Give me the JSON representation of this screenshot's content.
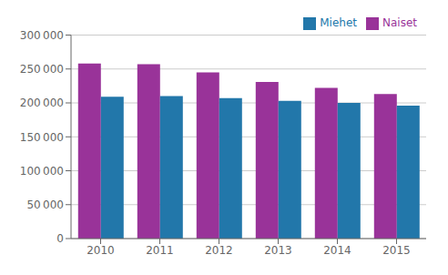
{
  "chart_data": {
    "type": "bar",
    "categories": [
      "2010",
      "2011",
      "2012",
      "2013",
      "2014",
      "2015"
    ],
    "series": [
      {
        "name": "Naiset",
        "color": "#993399",
        "values": [
          258000,
          257000,
          245000,
          231000,
          222000,
          213000
        ]
      },
      {
        "name": "Miehet",
        "color": "#2277AA",
        "values": [
          209000,
          210000,
          207000,
          203000,
          200000,
          196000
        ]
      }
    ],
    "ylim": [
      0,
      300000
    ],
    "yticks": [
      0,
      {
        "value": 50000,
        "label": "50 000"
      },
      {
        "value": 100000,
        "label": "100 000"
      },
      {
        "value": 150000,
        "label": "150 000"
      },
      {
        "value": 200000,
        "label": "200 000"
      },
      {
        "value": 250000,
        "label": "250 000"
      },
      {
        "value": 300000,
        "label": "300 000"
      }
    ],
    "grid": true,
    "legend": "upper right"
  }
}
